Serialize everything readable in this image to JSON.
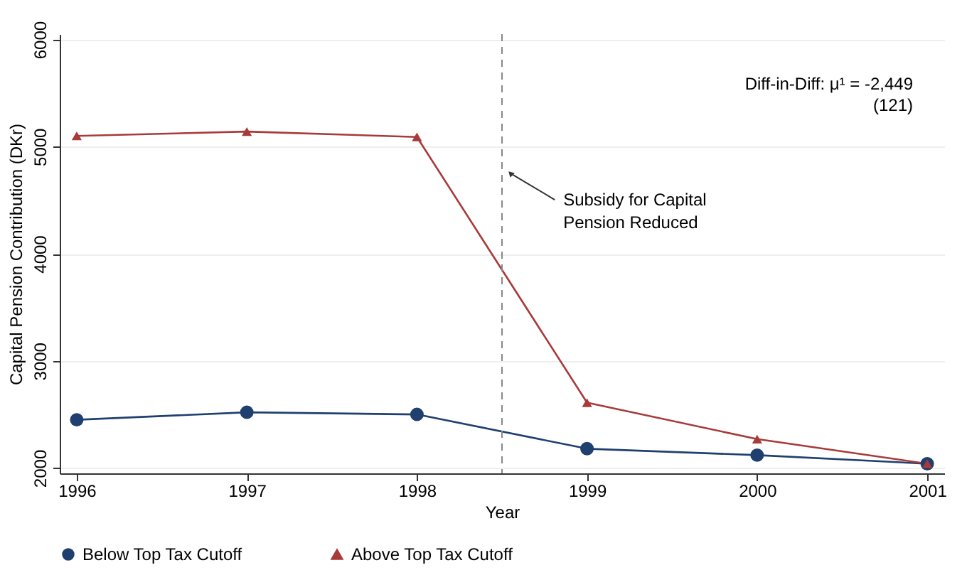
{
  "chart_data": {
    "type": "line",
    "x": [
      1996,
      1997,
      1998,
      1999,
      2000,
      2001
    ],
    "series": [
      {
        "name": "Below Top Tax Cutoff",
        "color": "#1f3f6e",
        "marker": "circle",
        "values": [
          2450,
          2520,
          2500,
          2180,
          2120,
          2040
        ]
      },
      {
        "name": "Above Top Tax Cutoff",
        "color": "#a83a3a",
        "marker": "triangle",
        "values": [
          5100,
          5140,
          5090,
          2610,
          2270,
          2040
        ]
      }
    ],
    "xlabel": "Year",
    "ylabel": "Capital Pension Contribution (DKr)",
    "xlim": [
      1995.9,
      2001.1
    ],
    "xticks": [
      1996,
      1997,
      1998,
      1999,
      2000,
      2001
    ],
    "ylim": [
      1950,
      6050
    ],
    "yticks": [
      2000,
      3000,
      4000,
      5000,
      6000
    ],
    "grid": "y",
    "legend": "bottom",
    "ref_lines": [
      {
        "axis": "x",
        "value": 1998.5,
        "line_style": "dashed",
        "color": "#888888"
      }
    ],
    "annotations": [
      {
        "text": "Subsidy for Capital\nPension Reduced",
        "x": 1998.55,
        "y": 4750
      },
      "Diff-in-Diff: μ¹ = -2,449\n(121)"
    ]
  }
}
